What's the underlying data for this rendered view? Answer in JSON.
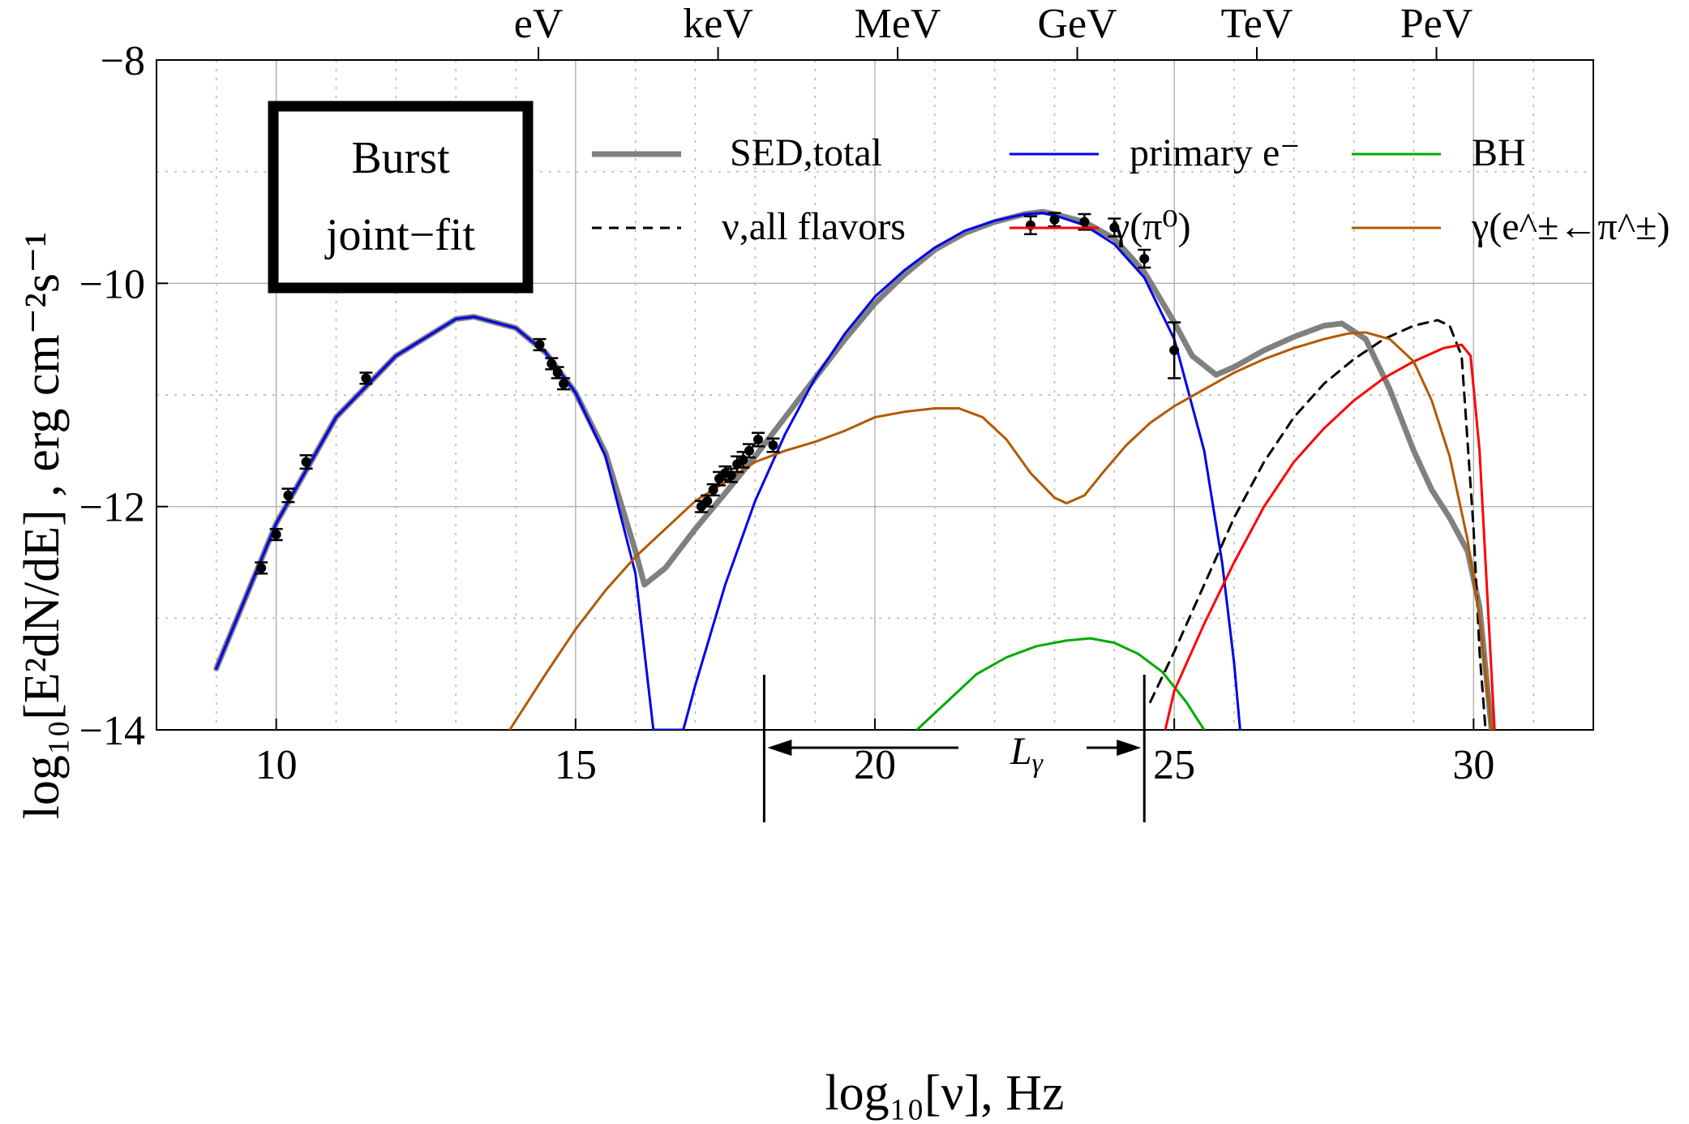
{
  "chart_data": {
    "type": "line",
    "title": "",
    "xlabel": "log₁₀[ν], Hz",
    "ylabel": "log₁₀[E²dN/dE] , erg cm⁻²s⁻¹",
    "xlim": [
      8,
      32
    ],
    "ylim": [
      -14,
      -8
    ],
    "xticks": [
      10,
      15,
      20,
      25,
      30
    ],
    "yticks": [
      -14,
      -12,
      -10,
      -8
    ],
    "top_axis": {
      "labels": [
        "eV",
        "keV",
        "MeV",
        "GeV",
        "TeV",
        "PeV"
      ],
      "positions": [
        14.38,
        17.38,
        20.38,
        23.38,
        26.38,
        29.38
      ]
    },
    "annotation_box": {
      "line1": "Burst",
      "line2": "joint−fit"
    },
    "luminosity_marker": {
      "label": "L",
      "subscript": "γ",
      "x_from": 18.15,
      "x_to": 24.5
    },
    "legend_position": "top",
    "series": [
      {
        "name": "SED,total",
        "color": "#808080",
        "style": "solid",
        "x": [
          9.0,
          10.0,
          11.0,
          12.0,
          13.0,
          13.3,
          14.0,
          14.5,
          15.0,
          15.5,
          16.0,
          16.15,
          16.5,
          17.0,
          17.5,
          18.0,
          18.5,
          19.0,
          19.5,
          20.0,
          20.5,
          21.0,
          21.5,
          22.0,
          22.5,
          22.8,
          23.0,
          23.5,
          24.0,
          24.5,
          25.0,
          25.3,
          25.7,
          26.0,
          26.5,
          27.0,
          27.5,
          27.8,
          28.2,
          28.6,
          29.0,
          29.3,
          29.6,
          29.9,
          30.1,
          30.3
        ],
        "y": [
          -13.45,
          -12.15,
          -11.2,
          -10.65,
          -10.32,
          -10.3,
          -10.4,
          -10.62,
          -10.98,
          -11.52,
          -12.4,
          -12.7,
          -12.55,
          -12.2,
          -11.88,
          -11.55,
          -11.2,
          -10.85,
          -10.5,
          -10.18,
          -9.92,
          -9.7,
          -9.55,
          -9.45,
          -9.38,
          -9.36,
          -9.38,
          -9.45,
          -9.6,
          -9.9,
          -10.35,
          -10.65,
          -10.82,
          -10.75,
          -10.6,
          -10.48,
          -10.38,
          -10.36,
          -10.5,
          -10.95,
          -11.5,
          -11.85,
          -12.1,
          -12.4,
          -12.9,
          -14.0
        ]
      },
      {
        "name": "primary e⁻",
        "color": "#0000ee",
        "style": "solid",
        "x": [
          9.0,
          10.0,
          11.0,
          12.0,
          13.0,
          13.3,
          14.0,
          14.5,
          15.0,
          15.5,
          16.0,
          16.3,
          16.5,
          16.8,
          17.0,
          17.5,
          18.0,
          18.5,
          19.0,
          19.5,
          20.0,
          20.5,
          21.0,
          21.5,
          22.0,
          22.5,
          22.8,
          23.0,
          23.5,
          24.0,
          24.5,
          25.0,
          25.5,
          25.8,
          26.0,
          26.1
        ],
        "y": [
          -13.45,
          -12.15,
          -11.2,
          -10.65,
          -10.32,
          -10.3,
          -10.4,
          -10.62,
          -10.98,
          -11.55,
          -12.6,
          -14.0,
          -14.0,
          -14.0,
          -13.6,
          -12.7,
          -11.95,
          -11.35,
          -10.85,
          -10.45,
          -10.12,
          -9.88,
          -9.68,
          -9.53,
          -9.44,
          -9.38,
          -9.37,
          -9.39,
          -9.48,
          -9.65,
          -9.95,
          -10.5,
          -11.5,
          -12.5,
          -13.4,
          -14.0
        ]
      },
      {
        "name": "BH",
        "color": "#00aa00",
        "style": "solid",
        "x": [
          20.7,
          21.2,
          21.7,
          22.2,
          22.7,
          23.2,
          23.6,
          24.0,
          24.4,
          24.8,
          25.2,
          25.5
        ],
        "y": [
          -14.0,
          -13.75,
          -13.5,
          -13.35,
          -13.25,
          -13.2,
          -13.18,
          -13.22,
          -13.32,
          -13.48,
          -13.75,
          -14.0
        ]
      },
      {
        "name": "ν,all flavors",
        "color": "#000000",
        "style": "dashed",
        "x": [
          24.6,
          25.0,
          25.5,
          26.0,
          26.5,
          27.0,
          27.5,
          28.0,
          28.5,
          29.0,
          29.4,
          29.6,
          29.8,
          30.0,
          30.1,
          30.2
        ],
        "y": [
          -13.75,
          -13.3,
          -12.7,
          -12.1,
          -11.6,
          -11.2,
          -10.9,
          -10.68,
          -10.5,
          -10.38,
          -10.33,
          -10.38,
          -10.65,
          -12.2,
          -13.3,
          -14.0
        ]
      },
      {
        "name": "γ(π⁰)",
        "color": "#ff0000",
        "style": "solid",
        "x": [
          24.85,
          25.0,
          25.5,
          26.0,
          26.5,
          27.0,
          27.5,
          28.0,
          28.5,
          29.0,
          29.5,
          29.8,
          29.95,
          30.1,
          30.25,
          30.35
        ],
        "y": [
          -14.0,
          -13.65,
          -13.05,
          -12.5,
          -12.0,
          -11.6,
          -11.3,
          -11.05,
          -10.85,
          -10.7,
          -10.58,
          -10.55,
          -10.65,
          -11.5,
          -13.0,
          -14.0
        ]
      },
      {
        "name": "γ(e^±←π^±)",
        "color": "#b35900",
        "style": "solid",
        "x": [
          13.9,
          14.5,
          15.0,
          15.5,
          16.0,
          16.5,
          17.0,
          17.5,
          18.0,
          18.5,
          19.0,
          19.5,
          20.0,
          20.5,
          21.0,
          21.4,
          21.8,
          22.2,
          22.6,
          23.0,
          23.2,
          23.5,
          23.8,
          24.2,
          24.6,
          25.0,
          25.5,
          26.0,
          26.5,
          27.0,
          27.5,
          27.9,
          28.2,
          28.6,
          29.0,
          29.3,
          29.6,
          29.9,
          30.1,
          30.2,
          30.3
        ],
        "y": [
          -14.0,
          -13.5,
          -13.1,
          -12.75,
          -12.45,
          -12.2,
          -11.95,
          -11.78,
          -11.6,
          -11.5,
          -11.42,
          -11.32,
          -11.2,
          -11.15,
          -11.12,
          -11.12,
          -11.2,
          -11.4,
          -11.7,
          -11.92,
          -11.97,
          -11.9,
          -11.7,
          -11.45,
          -11.25,
          -11.1,
          -10.95,
          -10.8,
          -10.68,
          -10.58,
          -10.5,
          -10.45,
          -10.44,
          -10.5,
          -10.7,
          -11.05,
          -11.55,
          -12.3,
          -13.0,
          -13.5,
          -14.0
        ]
      }
    ],
    "data_points": {
      "x": [
        9.75,
        10.0,
        10.2,
        10.5,
        11.5,
        14.4,
        14.6,
        14.7,
        14.8,
        17.1,
        17.2,
        17.3,
        17.4,
        17.5,
        17.6,
        17.7,
        17.8,
        17.9,
        18.05,
        18.3,
        22.6,
        23.0,
        23.5,
        24.0,
        24.5,
        25.0
      ],
      "y": [
        -12.55,
        -12.25,
        -11.9,
        -11.6,
        -10.85,
        -10.55,
        -10.72,
        -10.8,
        -10.9,
        -12.0,
        -11.95,
        -11.85,
        -11.75,
        -11.7,
        -11.72,
        -11.62,
        -11.58,
        -11.5,
        -11.4,
        -11.45,
        -9.48,
        -9.43,
        -9.45,
        -9.5,
        -9.78,
        -10.6
      ],
      "err": [
        0.05,
        0.05,
        0.06,
        0.06,
        0.05,
        0.05,
        0.05,
        0.05,
        0.05,
        0.05,
        0.05,
        0.05,
        0.06,
        0.06,
        0.06,
        0.07,
        0.07,
        0.06,
        0.06,
        0.06,
        0.08,
        0.06,
        0.07,
        0.08,
        0.08,
        0.25
      ]
    },
    "legend": {
      "total": "SED,total",
      "primary": "primary e⁻",
      "bh": "BH",
      "nu": "ν,all flavors",
      "pi0": "γ(π⁰)",
      "epi": "γ(e^±←π^±)"
    }
  }
}
